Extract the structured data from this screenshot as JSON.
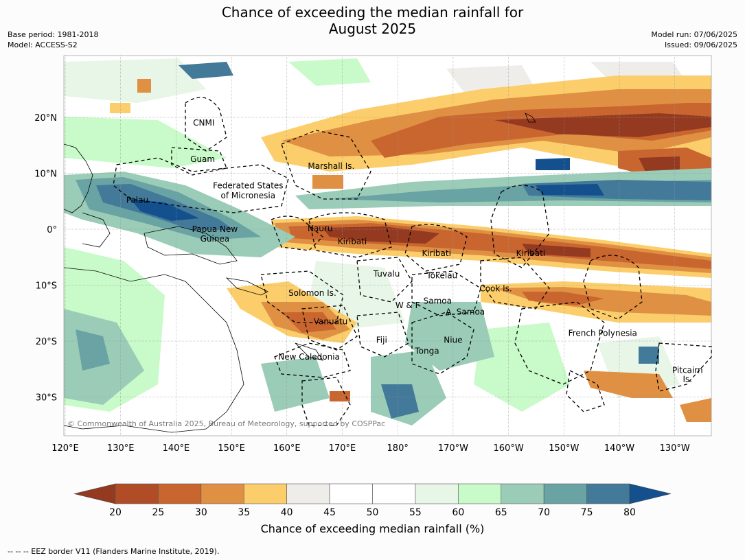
{
  "title": {
    "line1": "Chance of exceeding the median rainfall for",
    "line2": "August 2025"
  },
  "meta": {
    "base_period": "Base period: 1981-2018",
    "model": "Model: ACCESS-S2",
    "model_run": "Model run: 07/06/2025",
    "issued": "Issued: 09/06/2025"
  },
  "axes": {
    "longitude_ticks": [
      "120°E",
      "130°E",
      "140°E",
      "150°E",
      "160°E",
      "170°E",
      "180°",
      "170°W",
      "160°W",
      "150°W",
      "140°W",
      "130°W"
    ],
    "latitude_ticks": [
      "20°N",
      "10°N",
      "0°",
      "10°S",
      "20°S",
      "30°S"
    ]
  },
  "regions": [
    {
      "label": "CNMI",
      "lon": 145.0,
      "lat": 19.0
    },
    {
      "label": "Guam",
      "lon": 144.8,
      "lat": 12.5
    },
    {
      "label": "Marshall Is.",
      "lon": 168.0,
      "lat": 11.3
    },
    {
      "label": "Federated States",
      "lon": 153.0,
      "lat": 7.8
    },
    {
      "label": "of Micronesia",
      "lon": 153.0,
      "lat": 6.0
    },
    {
      "label": "Palau",
      "lon": 133.0,
      "lat": 5.2
    },
    {
      "label": "Papua New",
      "lon": 147.0,
      "lat": 0.0
    },
    {
      "label": "Guinea",
      "lon": 147.0,
      "lat": -1.7
    },
    {
      "label": "Nauru",
      "lon": 166.0,
      "lat": 0.1
    },
    {
      "label": "Kiribati",
      "lon": 171.8,
      "lat": -2.2
    },
    {
      "label": "Kiribati",
      "lon": 187.0,
      "lat": -4.3
    },
    {
      "label": "Kiribati",
      "lon": 204.0,
      "lat": -4.3
    },
    {
      "label": "Tuvalu",
      "lon": 178.0,
      "lat": -8.0
    },
    {
      "label": "Tokelau",
      "lon": 188.0,
      "lat": -8.3
    },
    {
      "label": "Solomon Is.",
      "lon": 164.6,
      "lat": -11.4
    },
    {
      "label": "Cook Is.",
      "lon": 197.7,
      "lat": -10.6
    },
    {
      "label": "W & F",
      "lon": 181.8,
      "lat": -13.6
    },
    {
      "label": "Samoa",
      "lon": 187.2,
      "lat": -12.8
    },
    {
      "label": "A. Samoa",
      "lon": 192.2,
      "lat": -14.8
    },
    {
      "label": "Vanuatu",
      "lon": 167.9,
      "lat": -16.5
    },
    {
      "label": "Fiji",
      "lon": 177.1,
      "lat": -19.8
    },
    {
      "label": "Niue",
      "lon": 190.0,
      "lat": -19.8
    },
    {
      "label": "French Polynesia",
      "lon": 217.0,
      "lat": -18.6
    },
    {
      "label": "New Caledonia",
      "lon": 164.0,
      "lat": -22.8
    },
    {
      "label": "Tonga",
      "lon": 185.3,
      "lat": -21.8
    },
    {
      "label": "Pitcairn",
      "lon": 232.3,
      "lat": -25.2
    },
    {
      "label": "Is.",
      "lon": 232.3,
      "lat": -26.8
    }
  ],
  "copyright": "© Commonwealth of Australia 2025, Bureau of Meteorology, supported by COSPPac",
  "colorbar": {
    "ticks": [
      "20",
      "25",
      "30",
      "35",
      "40",
      "45",
      "50",
      "55",
      "60",
      "65",
      "70",
      "75",
      "80"
    ],
    "colors": [
      "#b04d26",
      "#c9662f",
      "#e09042",
      "#fcce6b",
      "#efedea",
      "#ffffff",
      "#ffffff",
      "#e7f6e7",
      "#c9fac9",
      "#9accb7",
      "#6aa3a3",
      "#437999"
    ],
    "low_extend_color": "#943a20",
    "high_extend_color": "#14508d",
    "label": "Chance of exceeding median rainfall (%)"
  },
  "footer": "-- -- -- EEZ border V11 (Flanders Marine Institute, 2019)."
}
